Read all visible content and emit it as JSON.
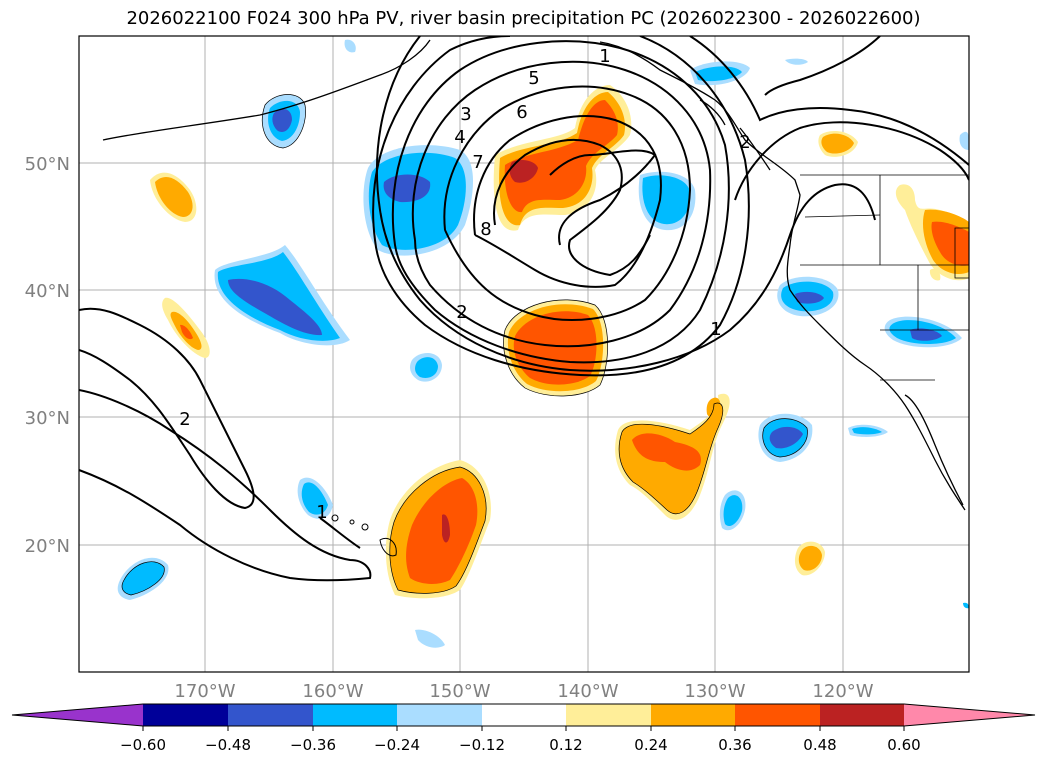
{
  "title": "2026022100 F024 300 hPa PV, river basin precipitation PC (2026022300 - 2026022600)",
  "map": {
    "lat_labels": [
      "50°N",
      "40°N",
      "30°N",
      "20°N"
    ],
    "lon_labels": [
      "170°W",
      "160°W",
      "150°W",
      "140°W",
      "130°W",
      "120°W"
    ],
    "contour_labels": [
      "1",
      "2",
      "3",
      "4",
      "5",
      "6",
      "7",
      "8",
      "2",
      "1",
      "1",
      "2"
    ]
  },
  "colorbar": {
    "tick_labels": [
      "−0.60",
      "−0.48",
      "−0.36",
      "−0.24",
      "−0.12",
      "0.12",
      "0.24",
      "0.36",
      "0.48",
      "0.60"
    ],
    "colors": [
      "#9933cc",
      "#000099",
      "#3355cc",
      "#00bbff",
      "#aaddff",
      "#ffffff",
      "#ffee99",
      "#ffaa00",
      "#ff5500",
      "#bb2222",
      "#ff88aa"
    ]
  },
  "colors": {
    "lightblue": "#aaddff",
    "cyan": "#00bbff",
    "midblue": "#3355cc",
    "yellow": "#ffee99",
    "orange": "#ffaa00",
    "redorange": "#ff5500",
    "darkred": "#bb2222"
  }
}
